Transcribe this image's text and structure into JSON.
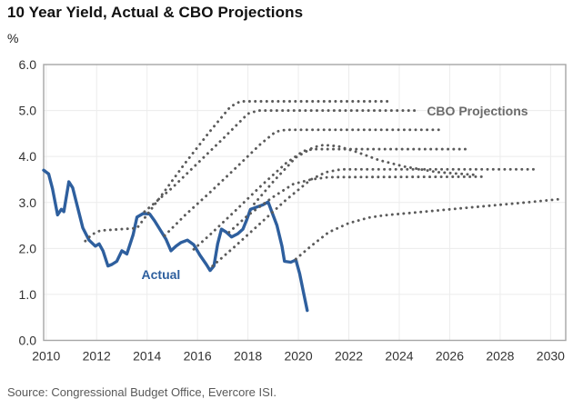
{
  "header": {
    "title": "10 Year Yield, Actual & CBO Projections",
    "unit": "%"
  },
  "footer": {
    "source": "Source: Congressional Budget Office, Evercore ISI."
  },
  "chart_data": {
    "type": "line",
    "title": "10 Year Yield, Actual & CBO Projections",
    "ylabel": "%",
    "xlabel": "",
    "grid": true,
    "x_axis": {
      "min": 2009.9,
      "max": 2030.6,
      "ticks": [
        2010,
        2012,
        2014,
        2016,
        2018,
        2020,
        2022,
        2024,
        2026,
        2028,
        2030
      ]
    },
    "y_axis": {
      "min": 0,
      "max": 6,
      "ticks": [
        0,
        1,
        2,
        3,
        4,
        5,
        6
      ],
      "tick_labels": [
        "0.0",
        "1.0",
        "2.0",
        "3.0",
        "4.0",
        "5.0",
        "6.0"
      ]
    },
    "colors": {
      "actual": "#2E5F9E",
      "projection": "#5A5A5A",
      "grid": "#ECECEC",
      "border": "#A6A6A6",
      "tick_text": "#333333"
    },
    "annotations": [
      {
        "text": "Actual",
        "x": 2014.55,
        "y": 1.43,
        "color": "#2E5F9E",
        "bold": true
      },
      {
        "text": "CBO Projections",
        "x": 2027.1,
        "y": 4.99,
        "color": "#6B6B6B",
        "bold": true
      }
    ],
    "series": [
      {
        "name": "Actual",
        "style": "solid",
        "color": "#2E5F9E",
        "width": 3.4,
        "points": [
          [
            2009.9,
            3.7
          ],
          [
            2010.1,
            3.62
          ],
          [
            2010.25,
            3.3
          ],
          [
            2010.45,
            2.73
          ],
          [
            2010.6,
            2.85
          ],
          [
            2010.7,
            2.8
          ],
          [
            2010.9,
            3.45
          ],
          [
            2011.05,
            3.32
          ],
          [
            2011.2,
            3.0
          ],
          [
            2011.45,
            2.45
          ],
          [
            2011.7,
            2.18
          ],
          [
            2011.95,
            2.05
          ],
          [
            2012.1,
            2.1
          ],
          [
            2012.25,
            1.95
          ],
          [
            2012.45,
            1.62
          ],
          [
            2012.6,
            1.65
          ],
          [
            2012.8,
            1.72
          ],
          [
            2013.0,
            1.95
          ],
          [
            2013.2,
            1.88
          ],
          [
            2013.45,
            2.3
          ],
          [
            2013.6,
            2.68
          ],
          [
            2013.85,
            2.76
          ],
          [
            2014.1,
            2.75
          ],
          [
            2014.3,
            2.6
          ],
          [
            2014.55,
            2.38
          ],
          [
            2014.75,
            2.2
          ],
          [
            2014.95,
            1.95
          ],
          [
            2015.15,
            2.05
          ],
          [
            2015.35,
            2.13
          ],
          [
            2015.6,
            2.18
          ],
          [
            2015.85,
            2.08
          ],
          [
            2016.1,
            1.85
          ],
          [
            2016.35,
            1.65
          ],
          [
            2016.5,
            1.52
          ],
          [
            2016.65,
            1.62
          ],
          [
            2016.8,
            2.1
          ],
          [
            2016.95,
            2.42
          ],
          [
            2017.15,
            2.35
          ],
          [
            2017.35,
            2.25
          ],
          [
            2017.6,
            2.32
          ],
          [
            2017.8,
            2.42
          ],
          [
            2017.95,
            2.62
          ],
          [
            2018.1,
            2.85
          ],
          [
            2018.35,
            2.9
          ],
          [
            2018.6,
            2.95
          ],
          [
            2018.8,
            3.01
          ],
          [
            2019.0,
            2.72
          ],
          [
            2019.15,
            2.5
          ],
          [
            2019.35,
            2.05
          ],
          [
            2019.45,
            1.72
          ],
          [
            2019.7,
            1.7
          ],
          [
            2019.9,
            1.75
          ],
          [
            2020.05,
            1.45
          ],
          [
            2020.2,
            1.05
          ],
          [
            2020.35,
            0.65
          ]
        ]
      },
      {
        "name": "CBO projection 2011",
        "style": "dotted",
        "color": "#5A5A5A",
        "width": 2.9,
        "points": [
          [
            2011.55,
            2.16
          ],
          [
            2011.8,
            2.3
          ],
          [
            2012.15,
            2.39
          ],
          [
            2013.0,
            2.42
          ],
          [
            2013.6,
            2.44
          ],
          [
            2014.5,
            3.1
          ],
          [
            2015.5,
            3.85
          ],
          [
            2016.5,
            4.55
          ],
          [
            2017.3,
            5.08
          ],
          [
            2017.7,
            5.2
          ],
          [
            2023.6,
            5.2
          ]
        ]
      },
      {
        "name": "CBO projection 2013",
        "style": "dotted",
        "color": "#5A5A5A",
        "width": 2.9,
        "points": [
          [
            2013.9,
            2.8
          ],
          [
            2015.0,
            3.32
          ],
          [
            2016.0,
            3.85
          ],
          [
            2017.0,
            4.38
          ],
          [
            2018.0,
            4.93
          ],
          [
            2018.4,
            5.0
          ],
          [
            2024.8,
            5.0
          ]
        ]
      },
      {
        "name": "CBO projection 2014",
        "style": "dotted",
        "color": "#5A5A5A",
        "width": 2.9,
        "points": [
          [
            2014.7,
            2.28
          ],
          [
            2015.5,
            2.72
          ],
          [
            2016.5,
            3.22
          ],
          [
            2017.5,
            3.74
          ],
          [
            2018.5,
            4.27
          ],
          [
            2019.1,
            4.54
          ],
          [
            2019.5,
            4.58
          ],
          [
            2025.7,
            4.58
          ]
        ]
      },
      {
        "name": "CBO projection 2015",
        "style": "dotted",
        "color": "#5A5A5A",
        "width": 2.9,
        "points": [
          [
            2015.85,
            1.98
          ],
          [
            2016.5,
            2.3
          ],
          [
            2017.5,
            2.82
          ],
          [
            2018.5,
            3.35
          ],
          [
            2019.5,
            3.85
          ],
          [
            2020.2,
            4.12
          ],
          [
            2020.6,
            4.16
          ],
          [
            2026.7,
            4.16
          ]
        ]
      },
      {
        "name": "CBO projection 2016",
        "style": "dotted",
        "color": "#5A5A5A",
        "width": 2.9,
        "points": [
          [
            2016.6,
            1.62
          ],
          [
            2017.5,
            2.05
          ],
          [
            2018.5,
            2.55
          ],
          [
            2019.5,
            3.05
          ],
          [
            2020.5,
            3.5
          ],
          [
            2021.1,
            3.66
          ],
          [
            2021.7,
            3.72
          ],
          [
            2029.5,
            3.72
          ]
        ]
      },
      {
        "name": "CBO projection 2017",
        "style": "dotted",
        "color": "#5A5A5A",
        "width": 2.9,
        "points": [
          [
            2017.25,
            2.35
          ],
          [
            2018.0,
            2.72
          ],
          [
            2019.0,
            3.12
          ],
          [
            2019.8,
            3.4
          ],
          [
            2020.5,
            3.5
          ],
          [
            2021.2,
            3.55
          ],
          [
            2027.4,
            3.56
          ]
        ]
      },
      {
        "name": "CBO projection 2018",
        "style": "dotted",
        "color": "#5A5A5A",
        "width": 2.9,
        "points": [
          [
            2018.25,
            2.97
          ],
          [
            2019.0,
            3.45
          ],
          [
            2019.9,
            3.98
          ],
          [
            2020.6,
            4.2
          ],
          [
            2021.0,
            4.25
          ],
          [
            2021.6,
            4.22
          ],
          [
            2022.3,
            4.1
          ],
          [
            2023.2,
            3.92
          ],
          [
            2024.2,
            3.78
          ],
          [
            2025.5,
            3.66
          ],
          [
            2027.0,
            3.6
          ]
        ]
      },
      {
        "name": "CBO projection 2020",
        "style": "dotted",
        "color": "#5A5A5A",
        "width": 2.9,
        "points": [
          [
            2019.9,
            1.77
          ],
          [
            2020.5,
            2.05
          ],
          [
            2021.2,
            2.35
          ],
          [
            2022.0,
            2.55
          ],
          [
            2022.8,
            2.67
          ],
          [
            2023.4,
            2.72
          ],
          [
            2025.0,
            2.8
          ],
          [
            2027.0,
            2.9
          ],
          [
            2029.0,
            3.0
          ],
          [
            2030.5,
            3.08
          ]
        ]
      }
    ]
  }
}
